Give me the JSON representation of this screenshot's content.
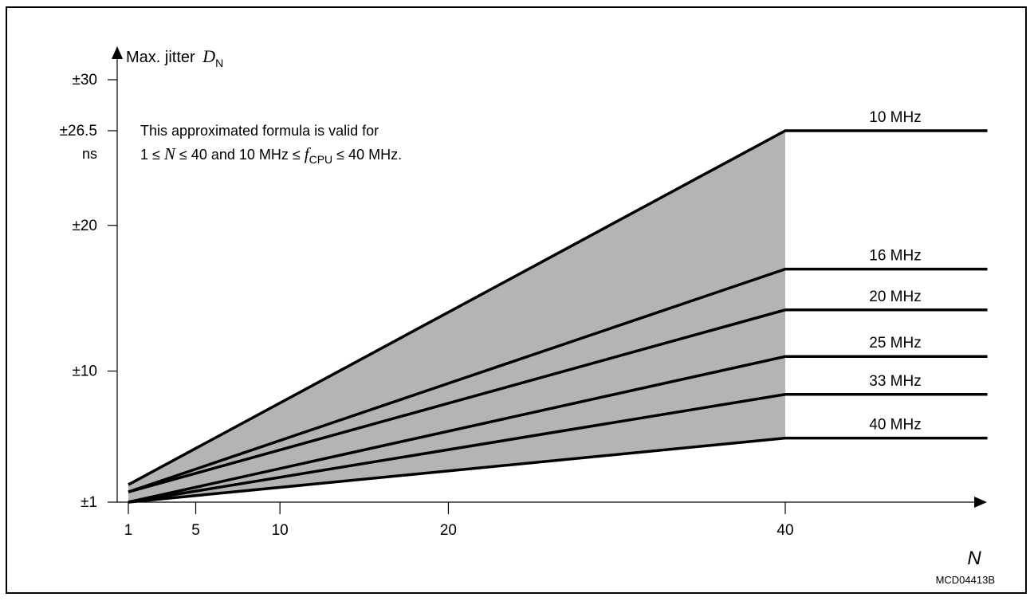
{
  "chart_data": {
    "type": "line",
    "ylabel": "Max. jitter",
    "ylabel_symbol": "D",
    "ylabel_subscript": "N",
    "y_unit": "ns",
    "xlabel": "N",
    "x_ticks": [
      1,
      5,
      10,
      20,
      40
    ],
    "y_ticks": [
      {
        "value": 1,
        "label": "±1"
      },
      {
        "value": 10,
        "label": "±10"
      },
      {
        "value": 20,
        "label": "±20"
      },
      {
        "value": 26.5,
        "label": "±26.5"
      },
      {
        "value": 30,
        "label": "±30"
      }
    ],
    "xlim": [
      1,
      52
    ],
    "ylim": [
      1,
      30
    ],
    "grid": false,
    "shaded_region": {
      "x_from": 1,
      "x_to": 40,
      "color": "#b4b4b4"
    },
    "series": [
      {
        "name": "10 MHz",
        "points": [
          [
            1,
            2.2
          ],
          [
            40,
            26.5
          ],
          [
            52,
            26.5
          ]
        ]
      },
      {
        "name": "16 MHz",
        "points": [
          [
            1,
            1.7
          ],
          [
            40,
            17.0
          ],
          [
            52,
            17.0
          ]
        ]
      },
      {
        "name": "20 MHz",
        "points": [
          [
            1,
            1.7
          ],
          [
            40,
            14.2
          ],
          [
            52,
            14.2
          ]
        ]
      },
      {
        "name": "25 MHz",
        "points": [
          [
            1,
            1.0
          ],
          [
            40,
            11.0
          ],
          [
            52,
            11.0
          ]
        ]
      },
      {
        "name": "33 MHz",
        "points": [
          [
            1,
            1.0
          ],
          [
            40,
            8.4
          ],
          [
            52,
            8.4
          ]
        ]
      },
      {
        "name": "40 MHz",
        "points": [
          [
            1,
            1.0
          ],
          [
            40,
            5.4
          ],
          [
            52,
            5.4
          ]
        ]
      }
    ],
    "annotation": {
      "line1": "This approximated formula is valid for",
      "line2_part1": "1 ≤ ",
      "line2_var1": "N",
      "line2_part2": " ≤ 40 and 10 MHz ≤ ",
      "line2_var2": "f",
      "line2_sub": "CPU",
      "line2_part3": " ≤ 40 MHz."
    },
    "code": "MCD04413B",
    "colors": {
      "line": "#000000",
      "shade": "#b4b4b4"
    }
  }
}
